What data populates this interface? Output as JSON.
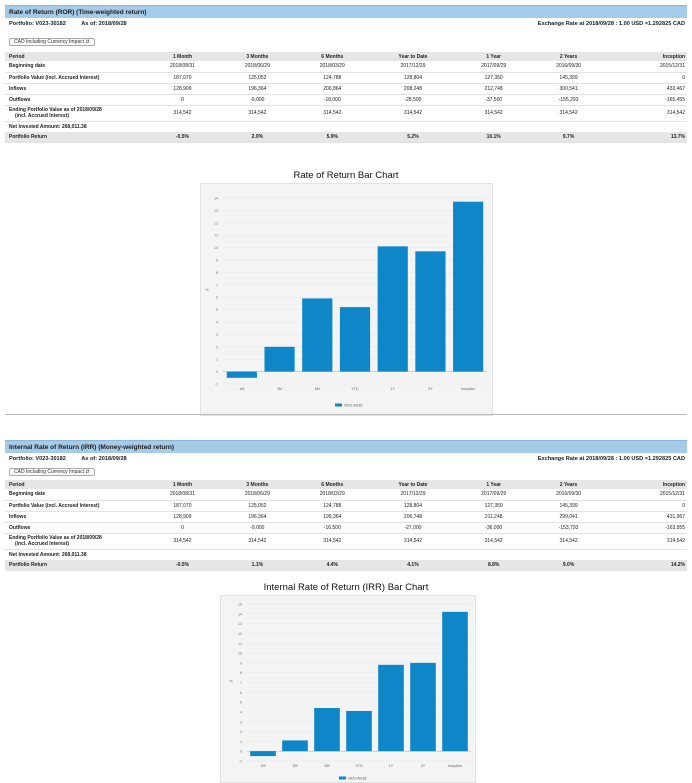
{
  "ror": {
    "title": "Rate of Return (ROR) (Time-weighted return)",
    "portfolio_label": "Portfolio: V023-30182",
    "as_of": "As of: 2018/09/28",
    "exchange_rate": "Exchange Rate at 2018/09/28 : 1.00 USD =1.292825 CAD",
    "currency_select": "CAD Including Currency Impact",
    "columns": [
      "Period",
      "1 Month",
      "3 Months",
      "6 Months",
      "Year to Date",
      "1 Year",
      "2 Years",
      "Inception"
    ],
    "rows": [
      {
        "label": "Beginning date",
        "values": [
          "2018/08/31",
          "2018/06/29",
          "2018/03/29",
          "2017/12/29",
          "2017/09/29",
          "2016/09/30",
          "2015/12/31"
        ]
      },
      {
        "label": "Portfolio Value (incl. Accrued Interest)",
        "values": [
          "187,070",
          "125,052",
          "124,788",
          "128,804",
          "127,350",
          "145,399",
          "0"
        ]
      },
      {
        "label": "Inflows",
        "values": [
          "128,909",
          "196,364",
          "200,864",
          "208,248",
          "212,748",
          "300,541",
          "433,467"
        ]
      },
      {
        "label": "Outflows",
        "values": [
          "0",
          "-9,000",
          "-18,000",
          "-28,500",
          "-37,500",
          "-155,293",
          "-165,455"
        ]
      },
      {
        "label1": "Ending Portfolio Value as of 2018/09/28",
        "label2": "(incl. Accrued Interest)",
        "values": [
          "314,542",
          "314,542",
          "314,542",
          "314,542",
          "314,542",
          "314,542",
          "314,542"
        ]
      }
    ],
    "net_invested": "Net Invested Amount: 268,011.38",
    "return_label": "Portfolio Return",
    "returns": [
      "-0.5%",
      "2.0%",
      "5.9%",
      "5.2%",
      "10.1%",
      "9.7%",
      "13.7%"
    ],
    "chart_title": "Rate of Return Bar Chart"
  },
  "irr": {
    "title": "Internal Rate of Return (IRR) (Money-weighted return)",
    "portfolio_label": "Portfolio: V023-30182",
    "as_of": "As of: 2018/09/28",
    "exchange_rate": "Exchange Rate at 2018/09/28 : 1.00 USD =1.292825 CAD",
    "currency_select": "CAD Including Currency Impact",
    "columns": [
      "Period",
      "1 Month",
      "3 Months",
      "6 Months",
      "Year to Date",
      "1 Year",
      "2 Years",
      "Inception"
    ],
    "rows": [
      {
        "label": "Beginning date",
        "values": [
          "2018/08/31",
          "2018/06/29",
          "2018/03/29",
          "2017/12/29",
          "2017/09/29",
          "2016/09/30",
          "2015/12/31"
        ]
      },
      {
        "label": "Portfolio Value (incl. Accrued Interest)",
        "values": [
          "187,070",
          "125,052",
          "124,788",
          "128,804",
          "127,350",
          "145,399",
          "0"
        ]
      },
      {
        "label": "Inflows",
        "values": [
          "128,909",
          "196,364",
          "199,364",
          "206,748",
          "211,248",
          "299,041",
          "431,967"
        ]
      },
      {
        "label": "Outflows",
        "values": [
          "0",
          "-9,000",
          "-16,500",
          "-27,000",
          "-36,000",
          "-153,793",
          "-163,955"
        ]
      },
      {
        "label1": "Ending Portfolio Value as of 2018/09/28",
        "label2": "(incl. Accrued Interest)",
        "values": [
          "314,542",
          "314,542",
          "314,542",
          "314,542",
          "314,542",
          "314,542",
          "314,542"
        ]
      }
    ],
    "net_invested": "Net Invested Amount: 268,011.38",
    "return_label": "Portfolio Return",
    "returns": [
      "-0.5%",
      "1.1%",
      "4.4%",
      "4.1%",
      "8.8%",
      "9.0%",
      "14.2%"
    ],
    "chart_title": "Internal Rate of Return (IRR) Bar Chart"
  },
  "chart_data": [
    {
      "type": "bar",
      "title": "Rate of Return Bar Chart",
      "categories": [
        "1M",
        "3M",
        "6M",
        "YTD",
        "1Y",
        "2Y",
        "Inception"
      ],
      "series": [
        {
          "name": "V023-30182",
          "values": [
            -0.5,
            2.0,
            5.9,
            5.2,
            10.1,
            9.7,
            13.7
          ]
        }
      ],
      "ylabel": "%",
      "ylim": [
        -1,
        14
      ],
      "yticks": [
        "-1",
        "0",
        "1",
        "2",
        "3",
        "4",
        "5",
        "6",
        "7",
        "8",
        "9",
        "10",
        "11",
        "12",
        "13",
        "14"
      ],
      "bar_color": "#0d87c8"
    },
    {
      "type": "bar",
      "title": "Internal Rate of Return (IRR) Bar Chart",
      "categories": [
        "1M",
        "3M",
        "6M",
        "YTD",
        "1Y",
        "2Y",
        "Inception"
      ],
      "series": [
        {
          "name": "V023-30182",
          "values": [
            -0.5,
            1.1,
            4.4,
            4.1,
            8.8,
            9.0,
            14.2
          ]
        }
      ],
      "ylabel": "%",
      "ylim": [
        -1,
        15
      ],
      "yticks": [
        "-1",
        "0",
        "1",
        "2",
        "3",
        "4",
        "5",
        "6",
        "7",
        "8",
        "9",
        "10",
        "11",
        "12",
        "13",
        "14",
        "15"
      ],
      "bar_color": "#0d87c8"
    }
  ]
}
